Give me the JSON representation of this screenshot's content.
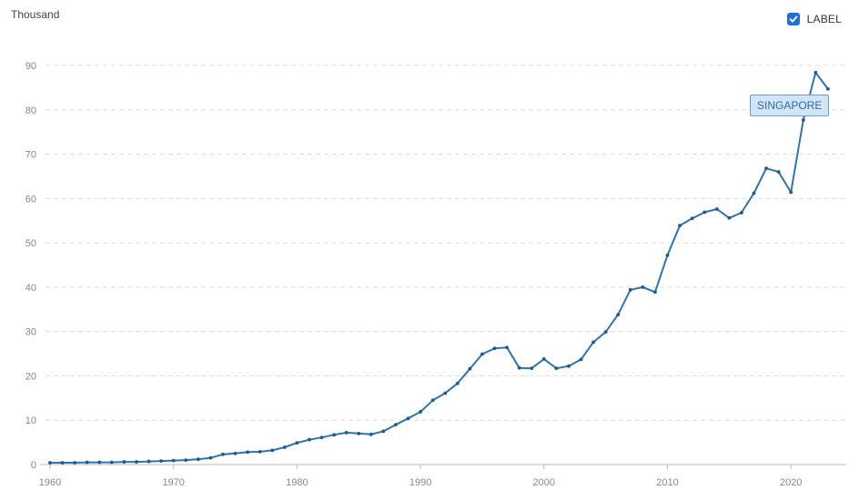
{
  "chart_data": {
    "type": "line",
    "unit_label": "Thousand",
    "legend_label": "LABEL",
    "legend_checked": true,
    "series_label": "SINGAPORE",
    "color": "#2e75b0",
    "xlim": [
      1960,
      2024
    ],
    "ylim": [
      0,
      90
    ],
    "x_ticks": [
      1960,
      1970,
      1980,
      1990,
      2000,
      2010,
      2020
    ],
    "y_ticks": [
      0,
      10,
      20,
      30,
      40,
      50,
      60,
      70,
      80,
      90
    ],
    "grid": true,
    "series": [
      {
        "name": "SINGAPORE",
        "x": [
          1960,
          1961,
          1962,
          1963,
          1964,
          1965,
          1966,
          1967,
          1968,
          1969,
          1970,
          1971,
          1972,
          1973,
          1974,
          1975,
          1976,
          1977,
          1978,
          1979,
          1980,
          1981,
          1982,
          1983,
          1984,
          1985,
          1986,
          1987,
          1988,
          1989,
          1990,
          1991,
          1992,
          1993,
          1994,
          1995,
          1996,
          1997,
          1998,
          1999,
          2000,
          2001,
          2002,
          2003,
          2004,
          2005,
          2006,
          2007,
          2008,
          2009,
          2010,
          2011,
          2012,
          2013,
          2014,
          2015,
          2016,
          2017,
          2018,
          2019,
          2020,
          2021,
          2022,
          2023
        ],
        "values": [
          0.4,
          0.4,
          0.4,
          0.5,
          0.5,
          0.5,
          0.6,
          0.6,
          0.7,
          0.8,
          0.9,
          1.0,
          1.2,
          1.5,
          2.3,
          2.5,
          2.8,
          2.9,
          3.2,
          3.9,
          4.9,
          5.6,
          6.1,
          6.7,
          7.2,
          7.0,
          6.8,
          7.5,
          9.0,
          10.4,
          11.9,
          14.5,
          16.1,
          18.3,
          21.6,
          24.9,
          26.2,
          26.4,
          21.8,
          21.7,
          23.8,
          21.7,
          22.2,
          23.7,
          27.6,
          29.9,
          33.8,
          39.4,
          40.0,
          38.9,
          47.2,
          53.9,
          55.5,
          56.9,
          57.6,
          55.6,
          56.8,
          61.2,
          66.8,
          66.0,
          61.4,
          77.7,
          88.4,
          84.7
        ]
      }
    ]
  }
}
